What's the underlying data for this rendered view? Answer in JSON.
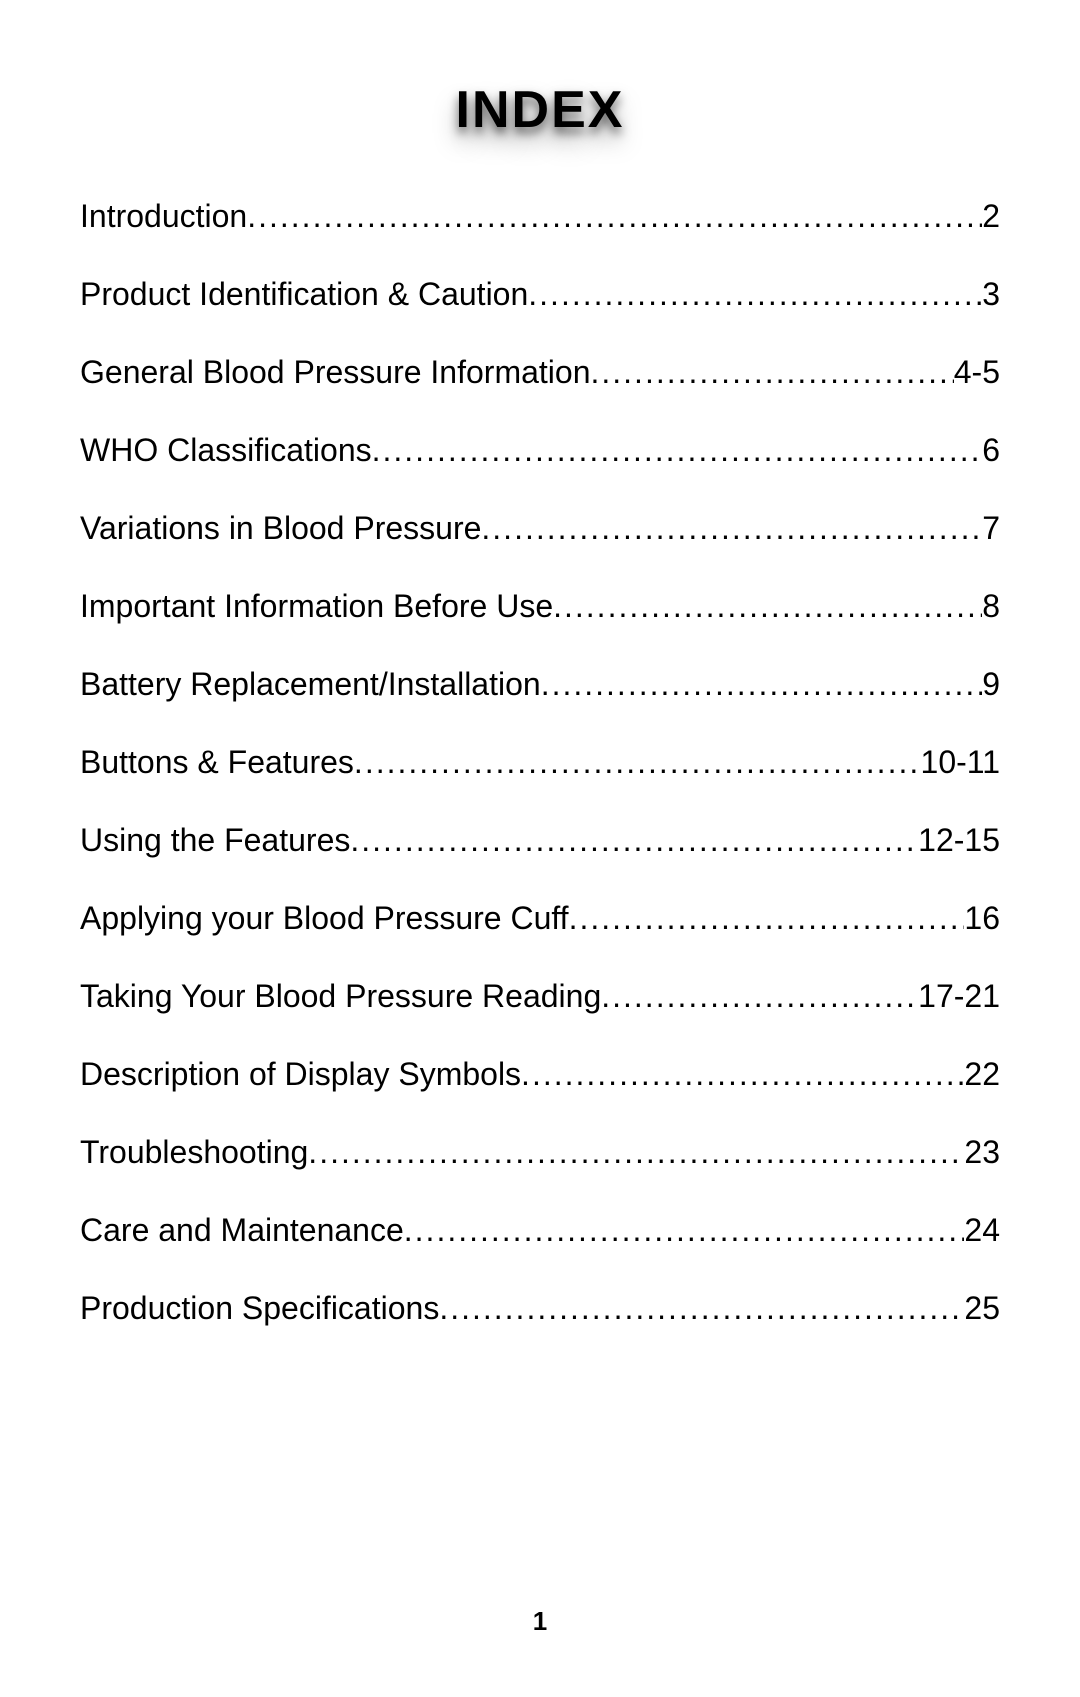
{
  "title": "INDEX",
  "page_number": "1",
  "toc": {
    "font_size_pt": 32,
    "title_font_size_pt": 52,
    "title_shadow_color": "#000000",
    "text_color": "#000000",
    "background_color": "#ffffff",
    "items": [
      {
        "label": "Introduction",
        "page": "2"
      },
      {
        "label": "Product Identification & Caution",
        "page": "3"
      },
      {
        "label": "General Blood Pressure Information",
        "page": "4-5"
      },
      {
        "label": "WHO Classifications",
        "page": "6"
      },
      {
        "label": "Variations in Blood Pressure ",
        "page": "7"
      },
      {
        "label": "Important Information Before Use",
        "page": "8"
      },
      {
        "label": "Battery Replacement/Installation",
        "page": "9"
      },
      {
        "label": "Buttons & Features",
        "page": " 10-11"
      },
      {
        "label": "Using the Features",
        "page": "12-15"
      },
      {
        "label": "Applying your Blood Pressure Cuff",
        "page": "16"
      },
      {
        "label": "Taking Your Blood Pressure Reading",
        "page": "17-21"
      },
      {
        "label": "Description of Display Symbols",
        "page": "22"
      },
      {
        "label": "Troubleshooting",
        "page": " 23"
      },
      {
        "label": "Care and Maintenance",
        "page": " 24"
      },
      {
        "label": "Production Specifications",
        "page": "25"
      }
    ]
  }
}
